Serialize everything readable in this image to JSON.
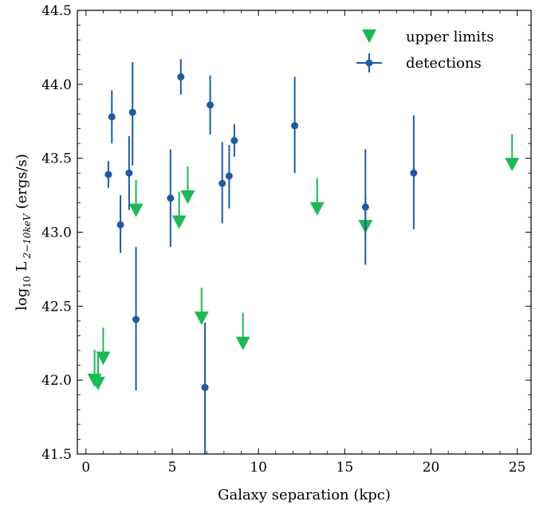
{
  "chart_data": {
    "type": "scatter",
    "xlabel": "Galaxy separation (kpc)",
    "ylabel": "log10 L 2−10keV (ergs/s)",
    "ylabel_parts": {
      "log": "log",
      "log_sub": "10",
      "L": "L",
      "band": "2−10keV",
      "unit": "(ergs/s)"
    },
    "xlim": [
      -0.5,
      25.8
    ],
    "ylim": [
      41.5,
      44.5
    ],
    "x_ticks": [
      0,
      5,
      10,
      15,
      20,
      25
    ],
    "y_ticks": [
      41.5,
      42.0,
      42.5,
      43.0,
      43.5,
      44.0,
      44.5
    ],
    "x_tick_labels": [
      "0",
      "5",
      "10",
      "15",
      "20",
      "25"
    ],
    "y_tick_labels": [
      "41.5",
      "42.0",
      "42.5",
      "43.0",
      "43.5",
      "44.0",
      "44.5"
    ],
    "grid": false,
    "legend_position": "top-right",
    "colors": {
      "detections": "#1f5aa6",
      "upper_limits": "#1db954"
    },
    "series": [
      {
        "name": "upper limits",
        "marker": "down-triangle-arrow",
        "points": [
          {
            "x": 0.5,
            "y": 42.0
          },
          {
            "x": 0.7,
            "y": 41.98
          },
          {
            "x": 1.0,
            "y": 42.15
          },
          {
            "x": 2.9,
            "y": 43.15
          },
          {
            "x": 5.4,
            "y": 43.07
          },
          {
            "x": 5.9,
            "y": 43.24
          },
          {
            "x": 6.7,
            "y": 42.42
          },
          {
            "x": 9.1,
            "y": 42.25
          },
          {
            "x": 13.4,
            "y": 43.16
          },
          {
            "x": 16.2,
            "y": 43.04
          },
          {
            "x": 24.7,
            "y": 43.46
          }
        ]
      },
      {
        "name": "detections",
        "marker": "circle-errorbar",
        "points": [
          {
            "x": 1.3,
            "y": 43.39,
            "lo": 43.3,
            "hi": 43.48
          },
          {
            "x": 1.5,
            "y": 43.78,
            "lo": 43.6,
            "hi": 43.96
          },
          {
            "x": 2.0,
            "y": 43.05,
            "lo": 42.86,
            "hi": 43.25
          },
          {
            "x": 2.5,
            "y": 43.4,
            "lo": 43.15,
            "hi": 43.65
          },
          {
            "x": 2.7,
            "y": 43.81,
            "lo": 43.45,
            "hi": 44.15
          },
          {
            "x": 2.9,
            "y": 42.41,
            "lo": 41.93,
            "hi": 42.9
          },
          {
            "x": 4.9,
            "y": 43.23,
            "lo": 42.9,
            "hi": 43.56
          },
          {
            "x": 5.5,
            "y": 44.05,
            "lo": 43.93,
            "hi": 44.17
          },
          {
            "x": 6.9,
            "y": 41.95,
            "lo": 41.5,
            "hi": 42.39
          },
          {
            "x": 7.2,
            "y": 43.86,
            "lo": 43.66,
            "hi": 44.06
          },
          {
            "x": 7.9,
            "y": 43.33,
            "lo": 43.06,
            "hi": 43.61
          },
          {
            "x": 8.3,
            "y": 43.38,
            "lo": 43.16,
            "hi": 43.59
          },
          {
            "x": 8.6,
            "y": 43.62,
            "lo": 43.51,
            "hi": 43.73
          },
          {
            "x": 12.1,
            "y": 43.72,
            "lo": 43.4,
            "hi": 44.05
          },
          {
            "x": 16.2,
            "y": 43.17,
            "lo": 42.78,
            "hi": 43.56
          },
          {
            "x": 19.0,
            "y": 43.4,
            "lo": 43.02,
            "hi": 43.79
          }
        ]
      }
    ]
  }
}
